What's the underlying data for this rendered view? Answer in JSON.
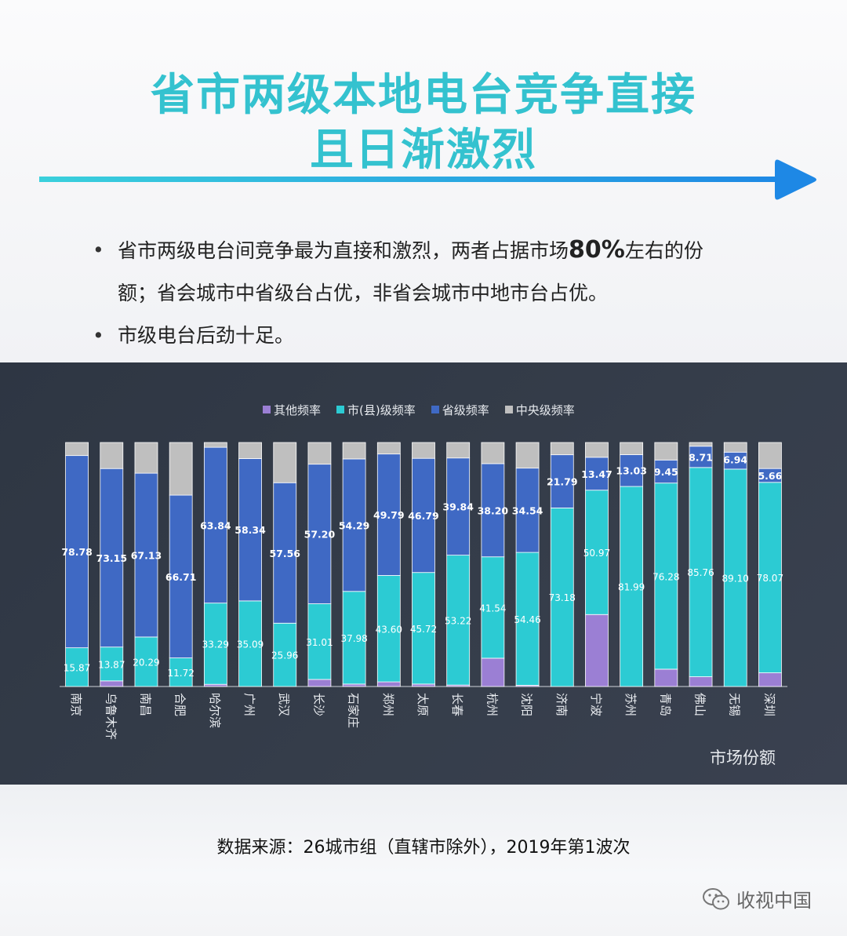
{
  "header": {
    "title_line1": "省市两级本地电台竞争直接",
    "title_line2": "且日渐激烈"
  },
  "bullets": {
    "b1_part1": "省市两级电台间竞争最为直接和激烈，两者占据市场",
    "b1_big": "80%",
    "b1_part2": "左右的份",
    "b1_part3": "额；省会城市中省级台占优，非省会城市中地市台占优。",
    "b2": "市级电台后劲十足。",
    "marker": "•"
  },
  "colors": {
    "title": "#34c2cf",
    "arrow_start": "#3ad0dc",
    "arrow_end": "#1e88e5",
    "other": "#9b7fd4",
    "city": "#2ccbd3",
    "province": "#3f69c4",
    "central": "#bfbfbf"
  },
  "chart_data": {
    "type": "bar",
    "stacked": true,
    "normalized": true,
    "ylim": [
      0,
      100
    ],
    "xlabel": "市场份额",
    "categories": [
      "南京",
      "乌鲁木齐",
      "南昌",
      "合肥",
      "哈尔滨",
      "广州",
      "武汉",
      "长沙",
      "石家庄",
      "郑州",
      "太原",
      "长春",
      "杭州",
      "沈阳",
      "济南",
      "宁波",
      "苏州",
      "青岛",
      "佛山",
      "无锡",
      "深圳"
    ],
    "series": [
      {
        "name": "其他频率",
        "color": "#9b7fd4",
        "values": [
          0,
          2.3,
          0,
          0,
          0.9,
          0,
          0,
          2.9,
          1.0,
          1.9,
          1.0,
          0.6,
          11.6,
          0.5,
          0,
          29.5,
          0,
          7.1,
          4.0,
          0,
          5.6
        ]
      },
      {
        "name": "市(县)级频率",
        "color": "#2ccbd3",
        "values": [
          15.87,
          13.87,
          20.29,
          11.72,
          33.29,
          35.09,
          25.96,
          31.01,
          37.98,
          43.6,
          45.72,
          53.22,
          41.54,
          54.46,
          73.18,
          50.97,
          81.99,
          76.28,
          85.76,
          89.1,
          78.07
        ]
      },
      {
        "name": "省级频率",
        "color": "#3f69c4",
        "values": [
          78.78,
          73.15,
          67.13,
          66.71,
          63.84,
          58.34,
          57.56,
          57.2,
          54.29,
          49.79,
          46.79,
          39.84,
          38.2,
          34.54,
          21.79,
          13.47,
          13.03,
          9.45,
          8.71,
          6.94,
          5.66
        ]
      },
      {
        "name": "中央级频率",
        "color": "#bfbfbf",
        "values": [
          5.35,
          10.68,
          12.58,
          21.57,
          1.97,
          6.57,
          16.48,
          8.89,
          6.73,
          4.71,
          6.49,
          6.34,
          8.66,
          10.5,
          5.03,
          6.06,
          4.98,
          7.17,
          1.53,
          3.96,
          10.67
        ]
      }
    ],
    "labels": {
      "city": [
        "15.87",
        "13.87",
        "20.29",
        "11.72",
        "33.29",
        "35.09",
        "25.96",
        "31.01",
        "37.98",
        "43.60",
        "45.72",
        "53.22",
        "41.54",
        "54.46",
        "73.18",
        "50.97",
        "81.99",
        "76.28",
        "85.76",
        "89.10",
        "78.07"
      ],
      "province": [
        "78.78",
        "73.15",
        "67.13",
        "66.71",
        "63.84",
        "58.34",
        "57.56",
        "57.20",
        "54.29",
        "49.79",
        "46.79",
        "39.84",
        "38.20",
        "34.54",
        "21.79",
        "13.47",
        "13.03",
        "9.45",
        "8.71",
        "6.94",
        "5.66"
      ]
    }
  },
  "footer": {
    "source": "数据来源：26城市组（直辖市除外），2019年第1波次",
    "watermark": "收视中国"
  }
}
